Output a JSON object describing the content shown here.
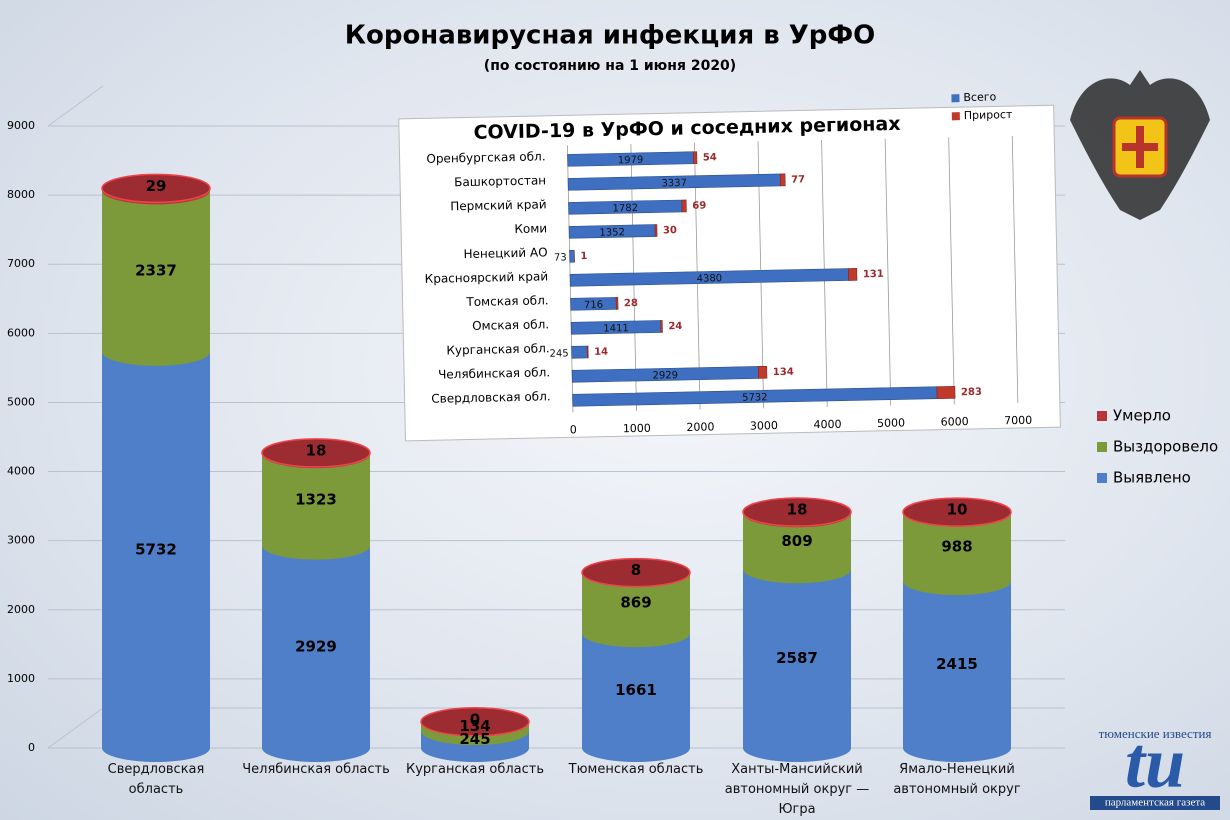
{
  "chart_data": [
    {
      "type": "bar",
      "stacked": true,
      "title": "Коронавирусная инфекция в УрФО",
      "subtitle": "(по состоянию на 1 июня 2020)",
      "categories": [
        "Свердловская область",
        "Челябинская область",
        "Курганская область",
        "Тюменская область",
        "Ханты-Мансийский автономный округ — Югра",
        "Ямало-Ненецкий автономный округ"
      ],
      "series": [
        {
          "name": "Выявлено",
          "color": "#4f7fc8",
          "values": [
            5732,
            2929,
            245,
            1661,
            2587,
            2415
          ]
        },
        {
          "name": "Выздоровело",
          "color": "#7d9a3a",
          "values": [
            2337,
            1323,
            134,
            869,
            809,
            988
          ]
        },
        {
          "name": "Умерло",
          "color": "#b8343a",
          "values": [
            29,
            18,
            0,
            8,
            18,
            10
          ]
        }
      ],
      "ylim": [
        0,
        9000
      ],
      "yticks": [
        0,
        1000,
        2000,
        3000,
        4000,
        5000,
        6000,
        7000,
        8000,
        9000
      ],
      "grid": true,
      "legend": "right"
    },
    {
      "type": "bar",
      "stacked": true,
      "orientation": "horizontal",
      "title": "COVID-19 в УрФО и соседних регионах",
      "categories": [
        "Оренбургская обл.",
        "Башкортостан",
        "Пермский край",
        "Коми",
        "Ненецкий АО",
        "Красноярский край",
        "Томская обл.",
        "Омская обл.",
        "Курганская обл.",
        "Челябинская обл.",
        "Свердловская обл."
      ],
      "series": [
        {
          "name": "Всего",
          "color": "#3f6fc0",
          "values": [
            1979,
            3337,
            1782,
            1352,
            73,
            4380,
            716,
            1411,
            245,
            2929,
            5732
          ]
        },
        {
          "name": "Прирост",
          "color": "#c0392b",
          "values": [
            54,
            77,
            69,
            30,
            1,
            131,
            28,
            24,
            14,
            134,
            283
          ]
        }
      ],
      "xlim": [
        0,
        7000
      ],
      "xticks": [
        0,
        1000,
        2000,
        3000,
        4000,
        5000,
        6000,
        7000
      ],
      "grid": true,
      "legend": "top-right"
    }
  ],
  "logo": {
    "top": "тюменские известия",
    "mark": "tu",
    "bottom": "парламентская газета"
  }
}
